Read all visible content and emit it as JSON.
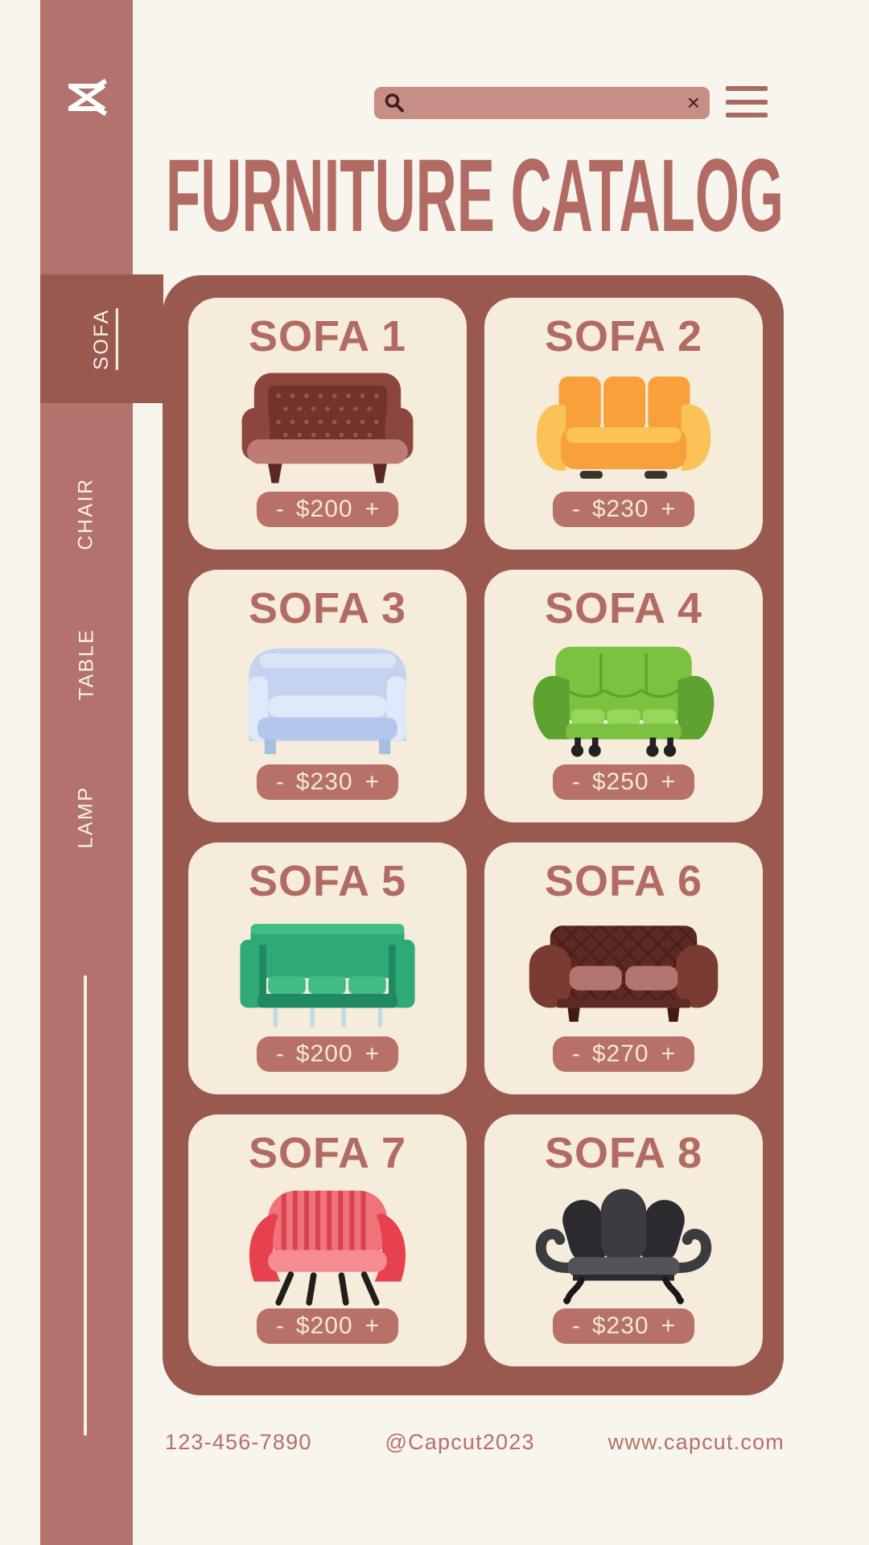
{
  "colors": {
    "page_bg": "#F8F4EE",
    "sidebar_bg": "#B3726C",
    "panel_bg": "#9A594F",
    "card_bg": "#F5ECDB",
    "accent": "#B26B63",
    "pill_bg": "#B77168",
    "pill_text": "#F3E8D8",
    "search_bg": "#C78E86",
    "search_icon": "#3E1F1A",
    "menu_icon": "#A86B62",
    "tab_text": "#F7F1E6",
    "footer_text": "#B5706B"
  },
  "sidebar": {
    "logo": "capcut-logo",
    "items": [
      {
        "label": "SOFA",
        "active": true
      },
      {
        "label": "CHAIR",
        "active": false
      },
      {
        "label": "TABLE",
        "active": false
      },
      {
        "label": "LAMP",
        "active": false
      }
    ]
  },
  "header": {
    "title": "FURNITURE CATALOG",
    "search": {
      "value": "",
      "placeholder": "",
      "clear_glyph": "×"
    }
  },
  "catalog": {
    "stepper": {
      "decrease": "-",
      "increase": "+"
    },
    "products": [
      {
        "name": "SOFA 1",
        "price": "$200",
        "variant": "chesterfield",
        "colors": {
          "main": "#8C463E",
          "dark": "#71342D",
          "dot": "#9C554B",
          "seat": "#BE7D74",
          "legs": "#5A2822"
        }
      },
      {
        "name": "SOFA 2",
        "price": "$230",
        "variant": "cushion_back",
        "colors": {
          "main": "#F8A13B",
          "light": "#FBC258",
          "shade": "#EE8E2C",
          "legs": "#38332B"
        }
      },
      {
        "name": "SOFA 3",
        "price": "$230",
        "variant": "smooth",
        "colors": {
          "main": "#C5D3F0",
          "light": "#DFE9FA",
          "mid": "#B3C6EB",
          "legs": "#A9BDE4"
        }
      },
      {
        "name": "SOFA 4",
        "price": "$250",
        "variant": "curved",
        "colors": {
          "main": "#7CC241",
          "dark": "#5EA22F",
          "light": "#97D75C",
          "legs": "#212121"
        }
      },
      {
        "name": "SOFA 5",
        "price": "$200",
        "variant": "straight",
        "colors": {
          "main": "#2FA977",
          "dark": "#1F8A5F",
          "light": "#41BC85",
          "legs": "#C2D9E6"
        }
      },
      {
        "name": "SOFA 6",
        "price": "$270",
        "variant": "roll_arm",
        "colors": {
          "main": "#7A3B33",
          "dark": "#5E2823",
          "lattice": "#4C1F1A",
          "seat": "#B3766E",
          "legs": "#401B16"
        }
      },
      {
        "name": "SOFA 7",
        "price": "$200",
        "variant": "shell",
        "colors": {
          "main": "#E8414E",
          "light": "#F0737A",
          "stripe": "#D94350",
          "seat": "#F58C91",
          "legs": "#221E19"
        }
      },
      {
        "name": "SOFA 8",
        "price": "$230",
        "variant": "fan_back",
        "colors": {
          "main": "#3C3C40",
          "dark": "#2B2B2F",
          "light": "#53535A",
          "legs": "#19191B"
        }
      }
    ]
  },
  "footer": {
    "phone": "123-456-7890",
    "handle": "@Capcut2023",
    "website": "www.capcut.com"
  }
}
